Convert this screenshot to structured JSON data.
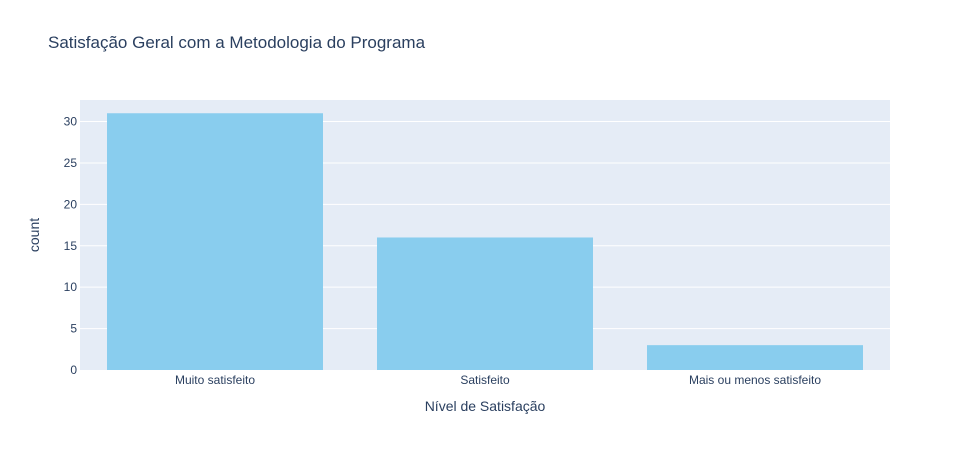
{
  "chart_data": {
    "type": "bar",
    "title": "Satisfação Geral com a Metodologia do Programa",
    "xlabel": "Nível de Satisfação",
    "ylabel": "count",
    "categories": [
      "Muito satisfeito",
      "Satisfeito",
      "Mais ou menos satisfeito"
    ],
    "values": [
      31,
      16,
      3
    ],
    "ylim": [
      0,
      32.6
    ],
    "yticks": [
      0,
      5,
      10,
      15,
      20,
      25,
      30
    ],
    "grid": true,
    "legend": "none",
    "colors": {
      "bar": "#89cdee",
      "plot_background": "#e5ecf6",
      "gridline": "#ffffff",
      "text": "#2a3f5f"
    }
  }
}
